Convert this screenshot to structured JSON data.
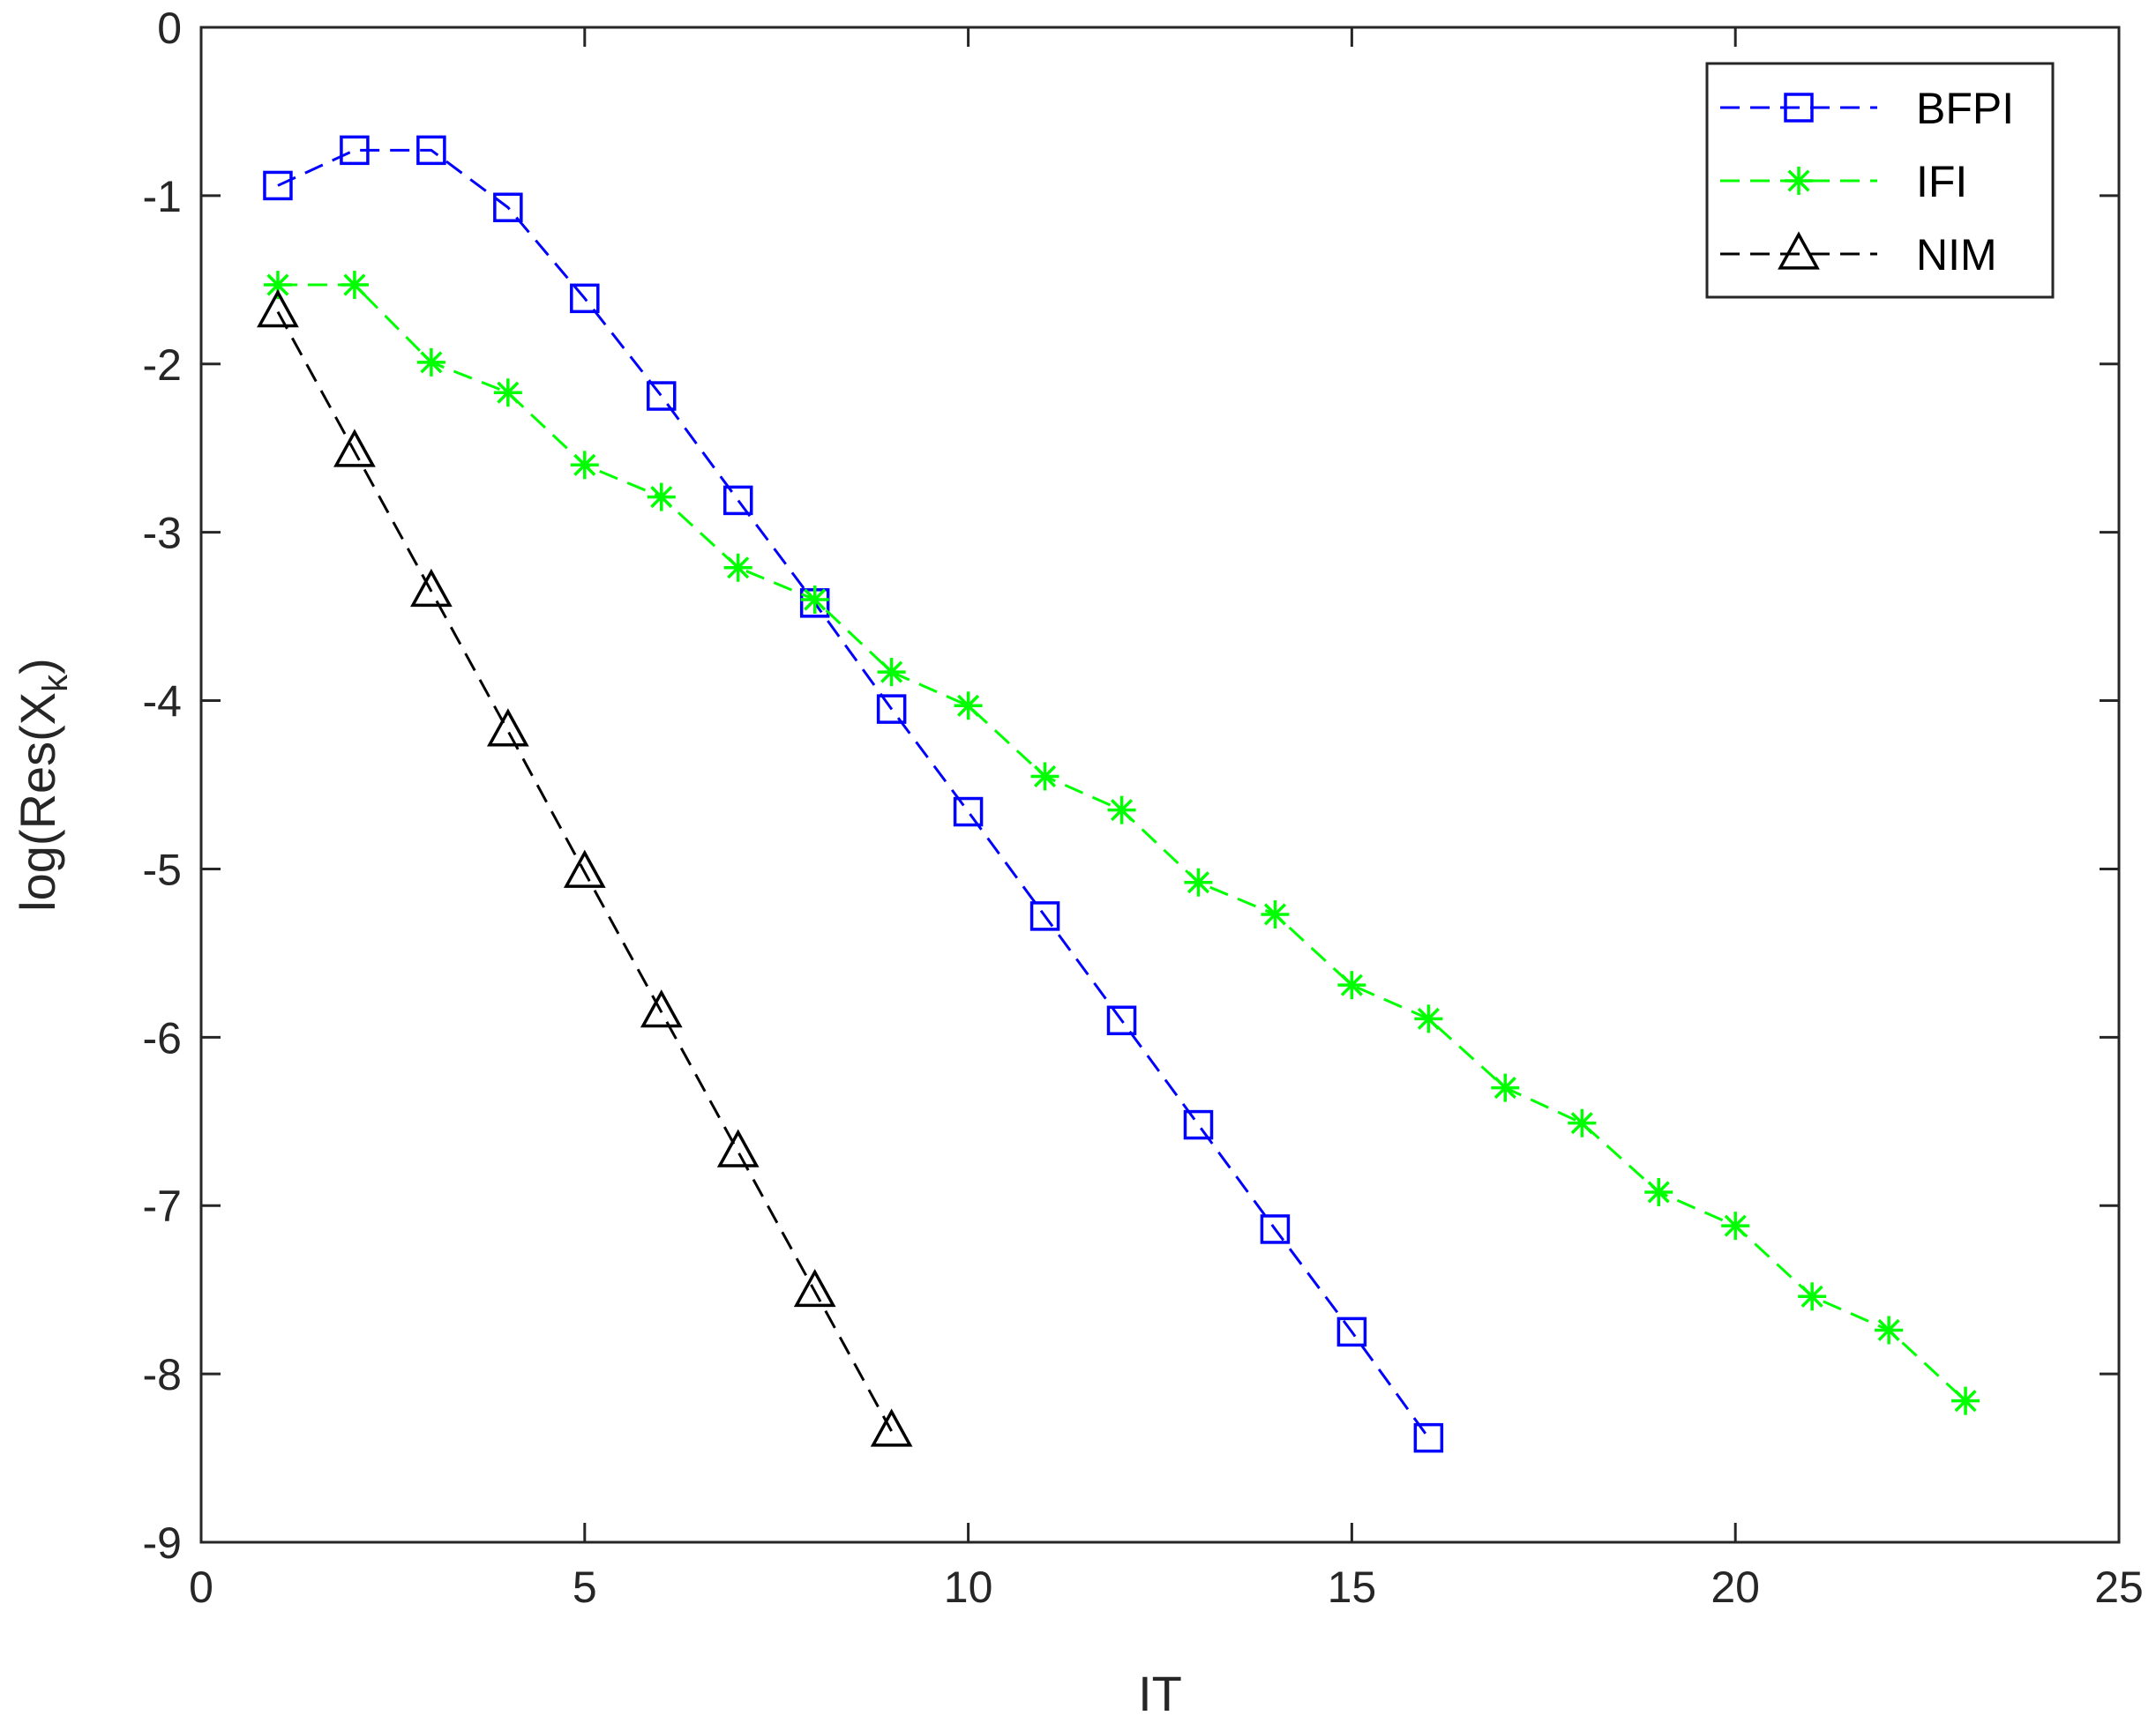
{
  "chart_data": {
    "type": "line",
    "xlabel": "IT",
    "ylabel": "log(Res(X",
    "ylabel_sub": "k",
    "ylabel_close": ")",
    "xlim": [
      0,
      25
    ],
    "ylim": [
      -9,
      0
    ],
    "xticks": [
      0,
      5,
      10,
      15,
      20,
      25
    ],
    "yticks": [
      0,
      -1,
      -2,
      -3,
      -4,
      -5,
      -6,
      -7,
      -8,
      -9
    ],
    "xtick_labels": [
      "0",
      "5",
      "10",
      "15",
      "20",
      "25"
    ],
    "ytick_labels": [
      "0",
      "-1",
      "-2",
      "-3",
      "-4",
      "-5",
      "-6",
      "-7",
      "-8",
      "-9"
    ],
    "grid": false,
    "legend_position": "top-right",
    "series": [
      {
        "name": "BFPI",
        "color": "#0000ff",
        "marker": "square",
        "line": "dashed",
        "x": [
          1,
          2,
          3,
          4,
          5,
          6,
          7,
          8,
          9,
          10,
          11,
          12,
          13,
          14,
          15,
          16
        ],
        "y": [
          -0.94,
          -0.73,
          -0.73,
          -1.07,
          -1.61,
          -2.19,
          -2.81,
          -3.42,
          -4.05,
          -4.66,
          -5.28,
          -5.9,
          -6.52,
          -7.14,
          -7.75,
          -8.38
        ]
      },
      {
        "name": "IFI",
        "color": "#00ff00",
        "marker": "asterisk",
        "line": "dashed",
        "x": [
          1,
          2,
          3,
          4,
          5,
          6,
          7,
          8,
          9,
          10,
          11,
          12,
          13,
          14,
          15,
          16,
          17,
          18,
          19,
          20,
          21,
          22,
          23
        ],
        "y": [
          -1.53,
          -1.53,
          -1.99,
          -2.17,
          -2.6,
          -2.79,
          -3.21,
          -3.4,
          -3.83,
          -4.03,
          -4.45,
          -4.65,
          -5.08,
          -5.27,
          -5.69,
          -5.89,
          -6.3,
          -6.51,
          -6.92,
          -7.12,
          -7.54,
          -7.74,
          -8.16
        ]
      },
      {
        "name": "NIM",
        "color": "#000000",
        "marker": "triangle",
        "line": "dashed",
        "x": [
          1,
          2,
          3,
          4,
          5,
          6,
          7,
          8,
          9
        ],
        "y": [
          -1.69,
          -2.52,
          -3.35,
          -4.18,
          -5.02,
          -5.85,
          -6.68,
          -7.51,
          -8.34
        ]
      }
    ]
  }
}
